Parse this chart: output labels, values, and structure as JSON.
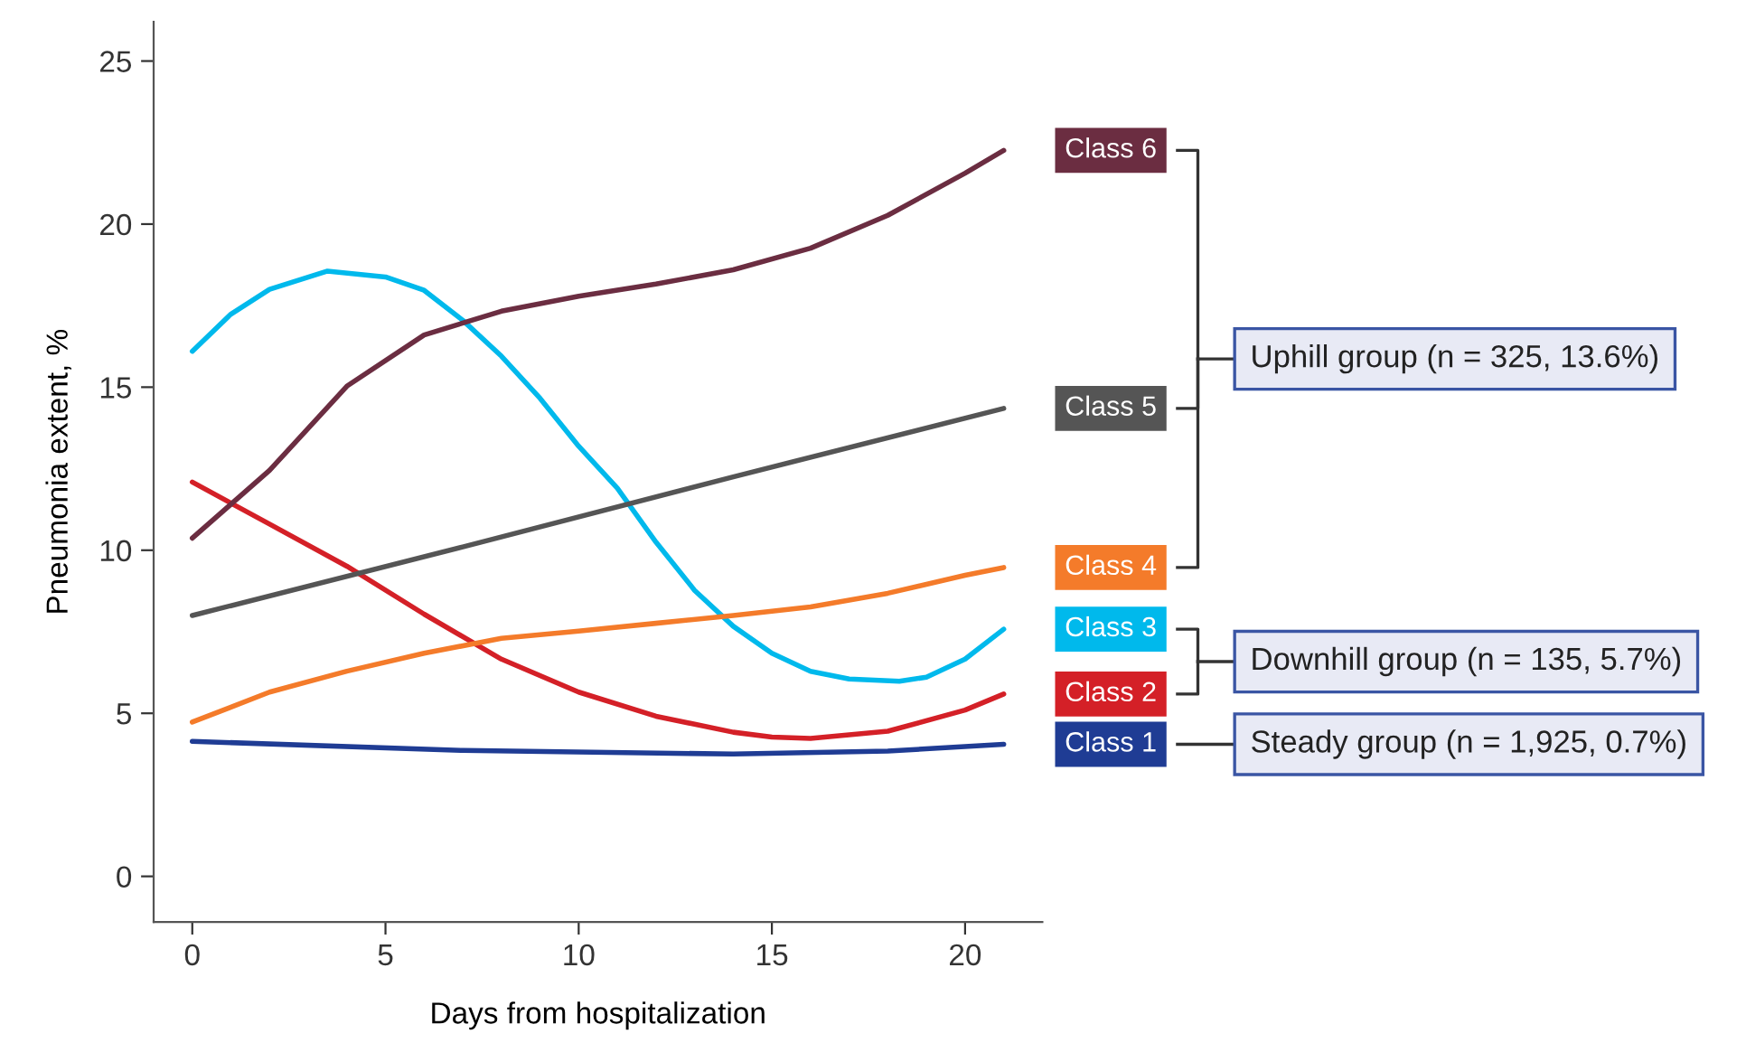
{
  "chart_data": {
    "type": "line",
    "xlabel": "Days from hospitalization",
    "ylabel": "Pneumonia extent, %",
    "xlim": [
      -1,
      22
    ],
    "ylim": [
      -1.4,
      26.2
    ],
    "xticks": [
      0,
      5,
      10,
      15,
      20
    ],
    "yticks": [
      0,
      5,
      10,
      15,
      20,
      25
    ],
    "grid": false,
    "legend": false,
    "marker": "none",
    "line_style": "solid",
    "series": [
      {
        "name": "Class 1",
        "color": "#1f3c94",
        "x": [
          0,
          7,
          14,
          18,
          21
        ],
        "values": [
          4.14,
          3.86,
          3.75,
          3.84,
          4.05
        ]
      },
      {
        "name": "Class 2",
        "color": "#d42027",
        "x": [
          0,
          2,
          4,
          6,
          8,
          10,
          12,
          14,
          15,
          16,
          18,
          20,
          21
        ],
        "values": [
          12.09,
          10.8,
          9.51,
          8.04,
          6.66,
          5.65,
          4.91,
          4.42,
          4.27,
          4.23,
          4.45,
          5.1,
          5.59
        ]
      },
      {
        "name": "Class 3",
        "color": "#00b9ec",
        "x": [
          0,
          1,
          2,
          3.5,
          5,
          6,
          7,
          8,
          9,
          10,
          11,
          12,
          13,
          14,
          15,
          16,
          17,
          18.3,
          19,
          20,
          21
        ],
        "values": [
          16.1,
          17.24,
          18.0,
          18.56,
          18.38,
          17.97,
          17.05,
          15.95,
          14.66,
          13.19,
          11.9,
          10.25,
          8.77,
          7.67,
          6.84,
          6.29,
          6.05,
          5.98,
          6.11,
          6.66,
          7.58
        ]
      },
      {
        "name": "Class 4",
        "color": "#f47b2a",
        "x": [
          0,
          2,
          4,
          6,
          8,
          10,
          12,
          14,
          16,
          18,
          20,
          21
        ],
        "values": [
          4.73,
          5.65,
          6.29,
          6.84,
          7.3,
          7.52,
          7.76,
          8.0,
          8.26,
          8.68,
          9.23,
          9.47
        ]
      },
      {
        "name": "Class 5",
        "color": "#555555",
        "x": [
          0,
          7,
          14,
          21
        ],
        "values": [
          8.0,
          10.1,
          12.25,
          14.35
        ]
      },
      {
        "name": "Class 6",
        "color": "#6b2d41",
        "x": [
          0,
          2,
          4,
          6,
          8,
          10,
          12,
          14,
          16,
          18,
          20,
          21
        ],
        "values": [
          10.37,
          12.45,
          15.03,
          16.6,
          17.33,
          17.79,
          18.16,
          18.6,
          19.26,
          20.27,
          21.56,
          22.26
        ]
      }
    ],
    "annotations": [
      "Steady group (n = 1,925, 0.7%)",
      "Downhill group (n = 135, 5.7%)",
      "Uphill group (n = 325, 13.6%)"
    ]
  }
}
